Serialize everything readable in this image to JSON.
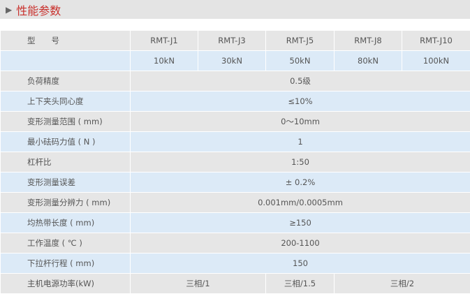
{
  "section": {
    "title": "性能参数",
    "icon": "triangle-right-icon"
  },
  "table": {
    "model_label": "型　　号",
    "models": [
      "RMT-J1",
      "RMT-J3",
      "RMT-J5",
      "RMT-J8",
      "RMT-J10"
    ],
    "capacities": [
      "10kN",
      "30kN",
      "50kN",
      "80kN",
      "100kN"
    ],
    "rows": [
      {
        "label": "负荷精度",
        "value": "0.5级"
      },
      {
        "label": "上下夹头同心度",
        "value": "≤10%"
      },
      {
        "label": "变形测量范围 ( mm)",
        "value": "0～10mm"
      },
      {
        "label": "最小砝码力值 ( N )",
        "value": "1"
      },
      {
        "label": "杠杆比",
        "value": "1:50"
      },
      {
        "label": "变形测量误差",
        "value": "± 0.2%"
      },
      {
        "label": "变形测量分辨力 ( mm)",
        "value": "0.001mm/0.0005mm"
      },
      {
        "label": "均热带长度 ( mm)",
        "value": "≥150"
      },
      {
        "label": "工作温度 ( ℃ )",
        "value": "200-1100"
      },
      {
        "label": "下拉杆行程 ( mm)",
        "value": "150"
      }
    ],
    "power": {
      "label": "主机电源功率(kW)",
      "values": [
        "三相/1",
        "三相/1.5",
        "三相/2"
      ]
    }
  }
}
